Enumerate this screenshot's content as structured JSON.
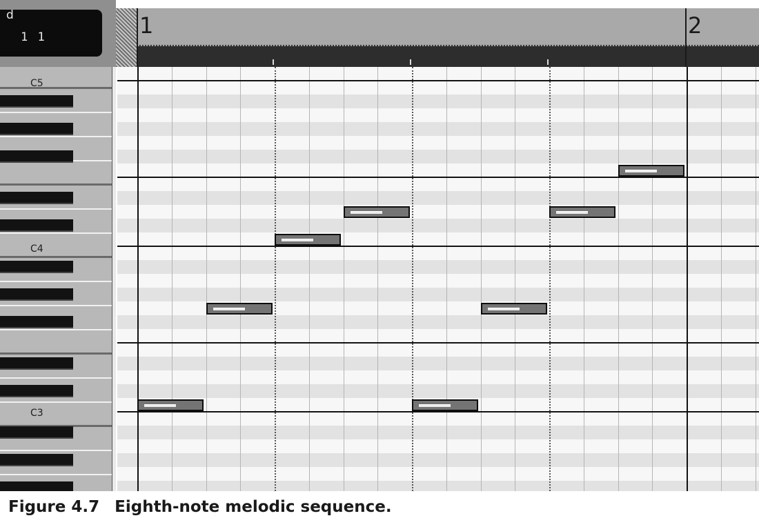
{
  "position_display": {
    "partial_label": "d",
    "value": "1 1"
  },
  "ruler": {
    "bars": [
      "1",
      "2"
    ]
  },
  "keyboard": {
    "octave_labels": [
      "C5",
      "C4",
      "C3"
    ]
  },
  "piano_roll": {
    "notes": [
      {
        "pitch": "C3",
        "start_eighth": 0,
        "length_eighths": 1
      },
      {
        "pitch": "G3",
        "start_eighth": 1,
        "length_eighths": 1
      },
      {
        "pitch": "C4",
        "start_eighth": 2,
        "length_eighths": 1
      },
      {
        "pitch": "D4",
        "start_eighth": 3,
        "length_eighths": 1
      },
      {
        "pitch": "C3",
        "start_eighth": 4,
        "length_eighths": 1
      },
      {
        "pitch": "G3",
        "start_eighth": 5,
        "length_eighths": 1
      },
      {
        "pitch": "D4",
        "start_eighth": 6,
        "length_eighths": 1
      },
      {
        "pitch": "F4",
        "start_eighth": 7,
        "length_eighths": 1
      }
    ]
  },
  "caption": {
    "label": "Figure 4.7",
    "text": "Eighth-note melodic sequence."
  }
}
